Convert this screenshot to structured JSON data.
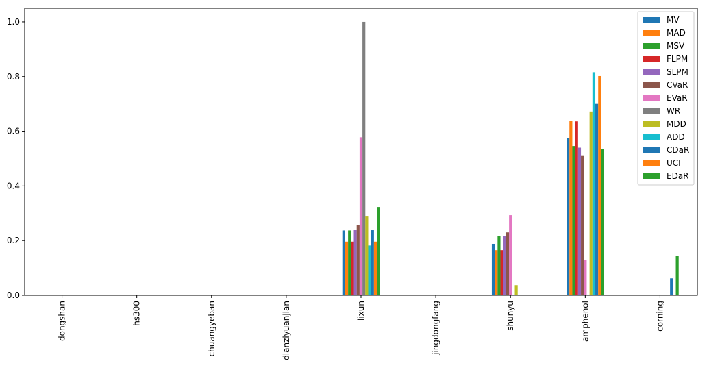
{
  "chart_data": {
    "type": "bar",
    "categories": [
      "dongshan",
      "hs300",
      "chuangyeban",
      "dianziyuanjian",
      "lixun",
      "jingdongfang",
      "shunyu",
      "amphenol",
      "corning"
    ],
    "series": [
      {
        "name": "MV",
        "color": "#1f77b4",
        "values": [
          0,
          0,
          0,
          0,
          0.237,
          0,
          0.188,
          0.575,
          0
        ]
      },
      {
        "name": "MAD",
        "color": "#ff7f0e",
        "values": [
          0,
          0,
          0,
          0,
          0.196,
          0,
          0.165,
          0.638,
          0
        ]
      },
      {
        "name": "MSV",
        "color": "#2ca02c",
        "values": [
          0,
          0,
          0,
          0,
          0.237,
          0,
          0.216,
          0.546,
          0
        ]
      },
      {
        "name": "FLPM",
        "color": "#d62728",
        "values": [
          0,
          0,
          0,
          0,
          0.196,
          0,
          0.165,
          0.636,
          0
        ]
      },
      {
        "name": "SLPM",
        "color": "#9467bd",
        "values": [
          0,
          0,
          0,
          0,
          0.24,
          0,
          0.218,
          0.54,
          0
        ]
      },
      {
        "name": "CVaR",
        "color": "#8c564b",
        "values": [
          0,
          0,
          0,
          0,
          0.258,
          0,
          0.23,
          0.512,
          0
        ]
      },
      {
        "name": "EVaR",
        "color": "#e377c2",
        "values": [
          0,
          0,
          0,
          0,
          0.578,
          0,
          0.293,
          0.128,
          0
        ]
      },
      {
        "name": "WR",
        "color": "#7f7f7f",
        "values": [
          0,
          0,
          0,
          0,
          1.0,
          0,
          0,
          0,
          0
        ]
      },
      {
        "name": "MDD",
        "color": "#bcbd22",
        "values": [
          0,
          0,
          0,
          0,
          0.288,
          0,
          0.037,
          0.672,
          0
        ]
      },
      {
        "name": "ADD",
        "color": "#17becf",
        "values": [
          0,
          0,
          0,
          0,
          0.182,
          0,
          0,
          0.816,
          0
        ]
      },
      {
        "name": "CDaR",
        "color": "#1f77b4",
        "values": [
          0,
          0,
          0,
          0,
          0.238,
          0,
          0,
          0.7,
          0.062
        ]
      },
      {
        "name": "UCI",
        "color": "#ff7f0e",
        "values": [
          0,
          0,
          0,
          0,
          0.196,
          0,
          0,
          0.802,
          0
        ]
      },
      {
        "name": "EDaR",
        "color": "#2ca02c",
        "values": [
          0,
          0,
          0,
          0,
          0.323,
          0,
          0,
          0.534,
          0.143
        ]
      }
    ],
    "yticks": [
      "0.0",
      "0.2",
      "0.4",
      "0.6",
      "0.8",
      "1.0"
    ],
    "ylim": [
      0,
      1.05
    ],
    "title": "",
    "xlabel": "",
    "ylabel": "",
    "legend_position": "top-right",
    "grid": false
  }
}
